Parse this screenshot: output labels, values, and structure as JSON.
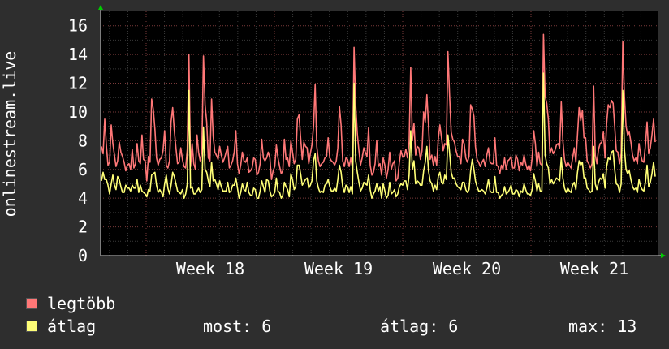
{
  "chart_data": {
    "type": "line",
    "ylabel": "onlinestream.live",
    "ylim": [
      0,
      17
    ],
    "yticks": [
      0,
      2,
      4,
      6,
      8,
      10,
      12,
      14,
      16
    ],
    "xticks": [
      "Week 18",
      "Week 19",
      "Week 20",
      "Week 21"
    ],
    "grid": true,
    "background": "#000000",
    "series": [
      {
        "name": "legtöbb",
        "color": "#ff7777",
        "values": [
          7.6,
          7.1,
          9.5,
          7.7,
          6.3,
          6.5,
          9.1,
          7.8,
          7.0,
          6.2,
          6.6,
          7.9,
          7.2,
          6.9,
          6.5,
          5.9,
          6.3,
          6.4,
          6.0,
          7.4,
          6.1,
          6.4,
          7.8,
          6.6,
          6.4,
          8.4,
          6.7,
          6.6,
          5.2,
          6.9,
          6.5,
          10.9,
          10.2,
          8.8,
          6.8,
          6.3,
          6.7,
          6.8,
          7.3,
          8.7,
          6.3,
          6.1,
          6.6,
          9.3,
          10.3,
          8.7,
          7.5,
          6.4,
          6.5,
          7.5,
          6.7,
          6.2,
          6.1,
          7.4,
          14.0,
          6.2,
          7.8,
          6.4,
          6.0,
          8.4,
          7.2,
          6.6,
          7.2,
          13.9,
          10.5,
          9.3,
          6.8,
          6.6,
          10.9,
          8.3,
          7.2,
          7.0,
          6.7,
          7.6,
          7.0,
          6.5,
          6.8,
          7.2,
          7.6,
          6.1,
          6.3,
          6.6,
          7.2,
          8.7,
          6.4,
          5.7,
          6.3,
          7.2,
          6.6,
          6.5,
          6.8,
          5.8,
          5.9,
          6.1,
          6.8,
          6.7,
          5.6,
          5.8,
          6.4,
          8.1,
          6.8,
          6.6,
          6.8,
          7.2,
          6.8,
          5.3,
          5.9,
          6.2,
          7.7,
          6.8,
          6.2,
          5.7,
          5.9,
          8.1,
          6.7,
          6.8,
          6.2,
          8.0,
          7.2,
          6.4,
          6.7,
          9.5,
          9.8,
          8.2,
          6.7,
          7.9,
          7.6,
          7.5,
          6.4,
          7.1,
          7.7,
          9.0,
          11.9,
          7.6,
          6.6,
          6.2,
          6.4,
          6.5,
          6.8,
          6.9,
          8.2,
          6.8,
          6.6,
          6.5,
          6.3,
          6.6,
          7.5,
          10.4,
          9.1,
          6.6,
          6.2,
          6.8,
          6.7,
          6.2,
          6.8,
          6.1,
          14.5,
          10.5,
          8.5,
          7.3,
          6.3,
          6.8,
          7.5,
          7.2,
          6.9,
          8.9,
          6.3,
          5.6,
          5.8,
          6.4,
          8.0,
          6.2,
          6.4,
          5.6,
          6.8,
          6.3,
          5.4,
          6.0,
          7.2,
          6.0,
          6.4,
          6.6,
          5.2,
          5.4,
          6.5,
          7.3,
          6.9,
          6.9,
          7.4,
          6.8,
          7.9,
          13.1,
          8.0,
          9.2,
          7.0,
          7.6,
          7.5,
          6.7,
          7.3,
          10.0,
          9.3,
          11.2,
          9.1,
          6.7,
          7.0,
          6.3,
          6.9,
          6.3,
          8.1,
          9.1,
          8.2,
          7.3,
          7.8,
          7.7,
          14.2,
          11.2,
          8.6,
          8.1,
          7.9,
          7.3,
          6.9,
          6.9,
          6.4,
          8.1,
          7.8,
          6.8,
          6.5,
          6.9,
          10.5,
          10.2,
          9.7,
          7.6,
          6.7,
          6.5,
          6.2,
          6.5,
          6.7,
          6.2,
          7.0,
          7.5,
          6.5,
          6.4,
          6.4,
          8.2,
          6.3,
          6.2,
          5.7,
          6.3,
          6.0,
          6.8,
          6.0,
          6.6,
          6.7,
          6.9,
          6.1,
          6.1,
          7.0,
          6.7,
          5.9,
          6.5,
          6.3,
          7.0,
          6.4,
          6.0,
          6.3,
          5.9,
          6.8,
          8.7,
          7.8,
          6.2,
          7.2,
          6.4,
          6.3,
          15.4,
          11.1,
          10.6,
          9.5,
          7.1,
          7.5,
          7.1,
          7.3,
          7.7,
          7.8,
          7.5,
          10.7,
          8.0,
          6.7,
          6.2,
          6.5,
          6.3,
          6.1,
          6.8,
          7.5,
          6.5,
          8.4,
          10.3,
          9.4,
          10.1,
          8.2,
          8.2,
          6.6,
          6.4,
          6.1,
          6.4,
          11.8,
          7.0,
          6.4,
          7.4,
          7.8,
          7.9,
          8.6,
          6.8,
          9.2,
          10.5,
          10.3,
          10.8,
          10.6,
          9.0,
          7.3,
          7.2,
          6.4,
          7.1,
          14.9,
          11.1,
          9.0,
          8.4,
          8.6,
          7.9,
          7.0,
          6.6,
          6.8,
          6.4,
          7.8,
          7.0,
          6.6,
          6.5,
          7.7,
          9.3,
          7.1,
          7.5,
          8.4,
          9.5,
          7.9
        ]
      },
      {
        "name": "átlag",
        "color": "#ffff77",
        "values": [
          5.2,
          5.8,
          5.3,
          5.3,
          4.9,
          4.3,
          5.0,
          5.6,
          4.9,
          4.6,
          5.5,
          5.3,
          4.8,
          4.4,
          4.4,
          4.9,
          4.7,
          4.7,
          4.5,
          4.9,
          4.7,
          4.7,
          5.3,
          4.4,
          4.9,
          4.5,
          4.4,
          4.3,
          4.1,
          4.6,
          4.5,
          5.6,
          5.7,
          5.8,
          4.9,
          4.4,
          4.6,
          4.4,
          4.1,
          5.0,
          5.6,
          4.7,
          4.3,
          4.9,
          5.8,
          5.5,
          5.0,
          4.5,
          4.4,
          4.3,
          4.6,
          4.0,
          4.3,
          5.0,
          11.5,
          4.7,
          4.8,
          4.3,
          4.3,
          4.5,
          4.7,
          4.4,
          4.6,
          8.9,
          6.0,
          5.8,
          5.2,
          4.8,
          6.5,
          5.2,
          5.3,
          5.0,
          4.6,
          5.2,
          4.8,
          4.5,
          4.5,
          4.5,
          5.1,
          4.4,
          4.5,
          4.9,
          4.9,
          5.4,
          4.7,
          4.0,
          4.4,
          5.0,
          4.6,
          4.5,
          5.1,
          4.4,
          4.2,
          4.2,
          4.7,
          4.6,
          4.0,
          4.0,
          4.5,
          5.2,
          4.8,
          4.4,
          5.3,
          5.2,
          4.5,
          4.1,
          4.2,
          4.4,
          5.4,
          4.5,
          4.4,
          4.0,
          4.2,
          5.1,
          4.8,
          4.6,
          4.1,
          5.7,
          5.3,
          4.6,
          4.8,
          6.3,
          6.3,
          5.7,
          4.9,
          5.1,
          5.3,
          5.4,
          4.7,
          4.9,
          5.2,
          6.6,
          7.1,
          5.2,
          4.7,
          4.4,
          4.5,
          4.4,
          4.9,
          5.0,
          5.3,
          4.8,
          4.5,
          4.5,
          4.7,
          4.5,
          5.3,
          6.3,
          5.8,
          4.8,
          4.4,
          4.9,
          4.8,
          4.4,
          4.8,
          4.3,
          12.0,
          6.6,
          5.8,
          5.1,
          4.5,
          4.7,
          5.1,
          5.0,
          4.9,
          5.6,
          4.6,
          4.0,
          4.3,
          4.5,
          5.0,
          4.5,
          4.8,
          4.0,
          5.0,
          4.5,
          4.0,
          4.2,
          5.1,
          4.3,
          4.4,
          4.6,
          4.1,
          4.3,
          4.8,
          5.0,
          4.9,
          5.2,
          5.2,
          4.6,
          5.6,
          8.7,
          6.0,
          6.6,
          5.0,
          5.2,
          5.1,
          4.9,
          4.9,
          5.9,
          6.5,
          7.6,
          5.9,
          5.2,
          5.0,
          4.5,
          4.9,
          4.6,
          5.5,
          5.8,
          5.1,
          5.0,
          5.6,
          5.3,
          8.4,
          7.2,
          5.8,
          5.4,
          5.4,
          5.0,
          4.8,
          4.7,
          4.6,
          5.1,
          5.1,
          4.6,
          4.4,
          4.6,
          5.9,
          6.7,
          6.0,
          5.2,
          4.8,
          4.5,
          4.5,
          4.6,
          4.5,
          4.3,
          4.7,
          5.3,
          4.5,
          4.4,
          4.4,
          5.5,
          4.4,
          4.4,
          4.0,
          4.2,
          4.3,
          4.8,
          4.3,
          4.4,
          4.6,
          4.9,
          4.3,
          4.3,
          4.6,
          4.5,
          4.1,
          4.5,
          4.4,
          5.0,
          4.6,
          4.3,
          4.3,
          4.2,
          4.6,
          5.7,
          5.2,
          4.5,
          5.0,
          4.5,
          4.5,
          12.7,
          7.0,
          6.4,
          6.1,
          5.0,
          5.3,
          5.0,
          5.2,
          5.4,
          5.3,
          5.2,
          6.8,
          5.4,
          4.7,
          4.4,
          4.7,
          4.5,
          4.4,
          4.9,
          5.1,
          4.6,
          5.8,
          6.6,
          6.3,
          6.5,
          5.4,
          5.4,
          4.7,
          4.6,
          4.4,
          4.5,
          7.6,
          5.0,
          4.6,
          5.1,
          5.4,
          5.3,
          5.7,
          4.7,
          6.2,
          6.8,
          6.7,
          7.2,
          7.3,
          6.0,
          5.0,
          4.9,
          4.4,
          5.0,
          11.5,
          7.4,
          6.0,
          5.7,
          5.9,
          5.3,
          4.8,
          4.6,
          4.7,
          4.4,
          5.3,
          4.8,
          4.6,
          4.5,
          5.1,
          6.3,
          4.8,
          5.1,
          5.7,
          6.5,
          5.5
        ]
      }
    ]
  },
  "legend": [
    {
      "label": "legtöbb",
      "color": "#ff7777"
    },
    {
      "label": "átlag",
      "color": "#ffff77"
    }
  ],
  "stats": {
    "most": "most: 6",
    "atlag": "átlag: 6",
    "max": "max: 13"
  },
  "colors": {
    "background": "#2e2e2e",
    "plot_background": "#000000",
    "text": "#ffffff",
    "grid_minor": "#3a3a3a",
    "grid_major": "#7a3a3a",
    "axis_arrow": "#00cc00"
  }
}
